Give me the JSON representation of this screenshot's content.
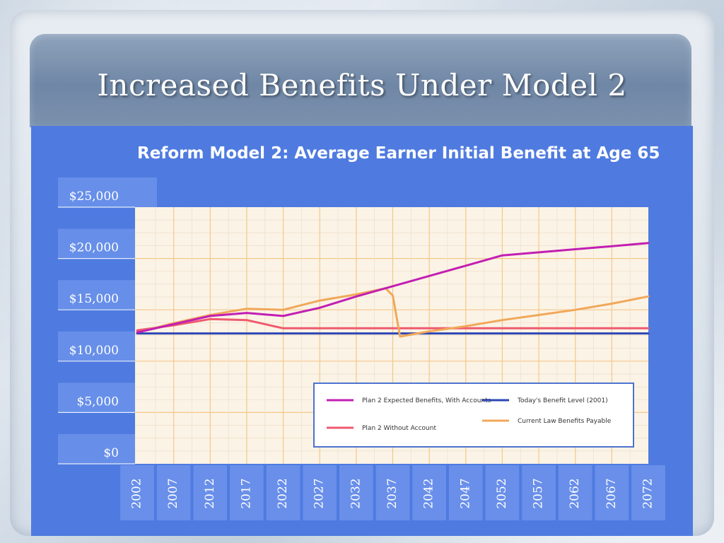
{
  "slide": {
    "title": "Increased Benefits Under Model 2"
  },
  "chart_data": {
    "type": "line",
    "title": "Reform Model 2: Average Earner Initial Benefit at Age 65",
    "xlabel": "",
    "ylabel": "",
    "x_ticks": [
      "2002",
      "2007",
      "2012",
      "2017",
      "2022",
      "2027",
      "2032",
      "2037",
      "2042",
      "2047",
      "2052",
      "2057",
      "2062",
      "2067",
      "2072"
    ],
    "x_range": [
      2002,
      2072
    ],
    "y_ticks": [
      "$0",
      "$5,000",
      "$10,000",
      "$15,000",
      "$20,000",
      "$25,000"
    ],
    "ylim": [
      0,
      25000
    ],
    "grid": true,
    "legend_placement": "bottom-right",
    "series": [
      {
        "name": "Plan 2 Expected Benefits, With Accounts",
        "color": "#c21fb3",
        "points": [
          [
            2002,
            12800
          ],
          [
            2007,
            13600
          ],
          [
            2012,
            14400
          ],
          [
            2017,
            14700
          ],
          [
            2022,
            14400
          ],
          [
            2027,
            15200
          ],
          [
            2032,
            16300
          ],
          [
            2037,
            17300
          ],
          [
            2042,
            18300
          ],
          [
            2047,
            19300
          ],
          [
            2052,
            20300
          ],
          [
            2057,
            20600
          ],
          [
            2062,
            20900
          ],
          [
            2067,
            21200
          ],
          [
            2072,
            21500
          ]
        ]
      },
      {
        "name": "Plan 2 Without Account",
        "color": "#ee5a6e",
        "points": [
          [
            2002,
            13000
          ],
          [
            2007,
            13500
          ],
          [
            2012,
            14100
          ],
          [
            2017,
            14000
          ],
          [
            2022,
            13200
          ],
          [
            2027,
            13200
          ],
          [
            2032,
            13200
          ],
          [
            2037,
            13200
          ],
          [
            2042,
            13200
          ],
          [
            2047,
            13200
          ],
          [
            2052,
            13200
          ],
          [
            2057,
            13200
          ],
          [
            2062,
            13200
          ],
          [
            2067,
            13200
          ],
          [
            2072,
            13200
          ]
        ]
      },
      {
        "name": "Today's Benefit Level (2001)",
        "color": "#2e47b4",
        "points": [
          [
            2002,
            12700
          ],
          [
            2072,
            12700
          ]
        ]
      },
      {
        "name": "Current Law Benefits Payable",
        "color": "#f0a85a",
        "points": [
          [
            2002,
            12800
          ],
          [
            2007,
            13700
          ],
          [
            2012,
            14500
          ],
          [
            2017,
            15100
          ],
          [
            2022,
            15000
          ],
          [
            2027,
            15900
          ],
          [
            2032,
            16500
          ],
          [
            2036,
            17100
          ],
          [
            2037,
            16400
          ],
          [
            2038,
            12400
          ],
          [
            2042,
            12900
          ],
          [
            2047,
            13400
          ],
          [
            2052,
            14000
          ],
          [
            2057,
            14500
          ],
          [
            2062,
            15000
          ],
          [
            2067,
            15600
          ],
          [
            2072,
            16300
          ]
        ]
      }
    ]
  }
}
